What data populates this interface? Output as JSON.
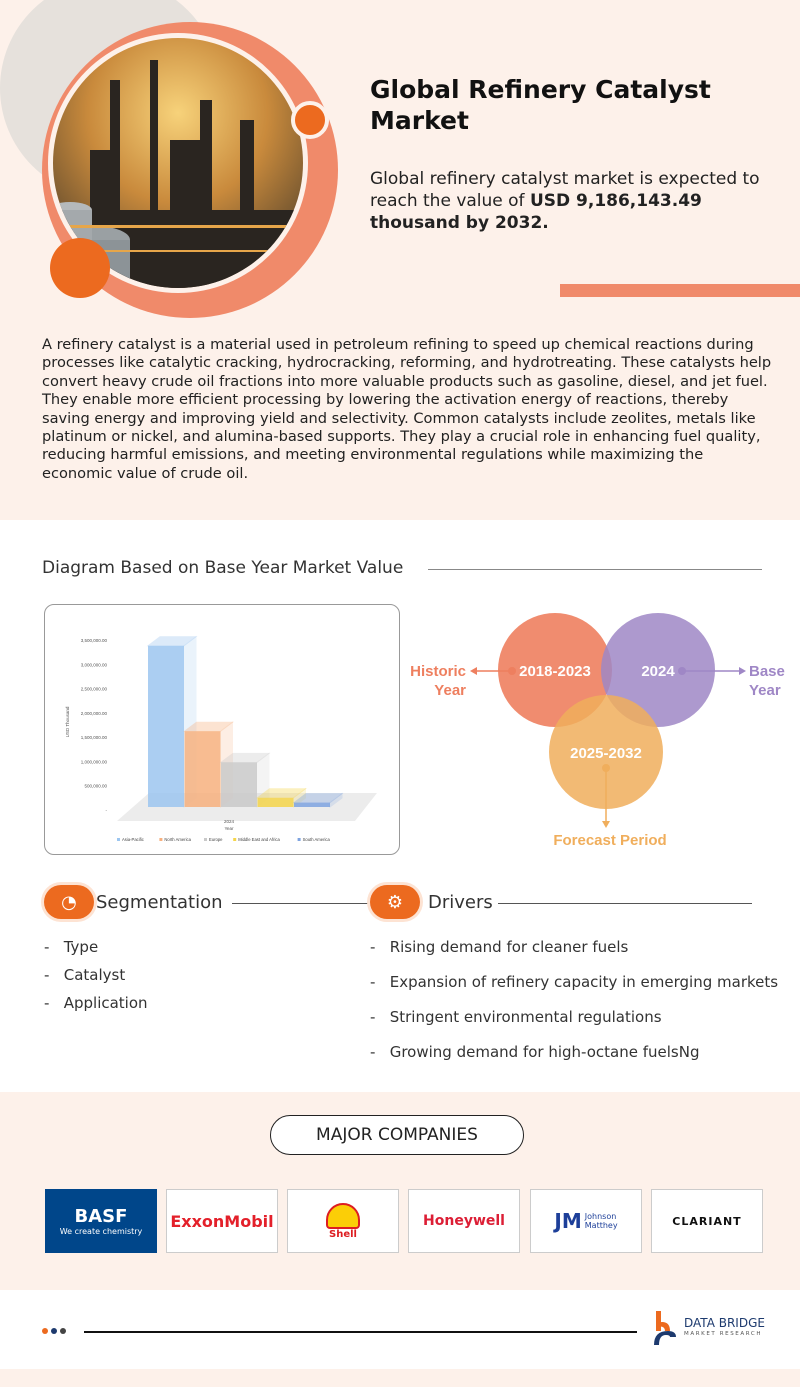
{
  "header": {
    "title": "Global Refinery Catalyst Market",
    "subtitle_pre": "Global refinery catalyst market is expected to reach the value of ",
    "subtitle_bold": "USD 9,186,143.49 thousand by 2032."
  },
  "description": "A refinery catalyst is a material used in petroleum refining to speed up chemical reactions during processes like catalytic cracking, hydrocracking, reforming, and hydrotreating. These catalysts help convert heavy crude oil fractions into more valuable products such as gasoline, diesel, and jet fuel. They enable more efficient processing by lowering the activation energy of reactions, thereby saving energy and improving yield and selectivity. Common catalysts include zeolites, metals like platinum or nickel, and alumina-based supports. They play a crucial role in enhancing fuel quality, reducing harmful emissions, and meeting environmental regulations while maximizing the economic value of crude oil.",
  "diagram_section": {
    "title": "Diagram Based on Base Year Market Value"
  },
  "chart_data": {
    "type": "bar",
    "title": "",
    "xlabel": "Year",
    "ylabel": "USD Thousand",
    "categories": [
      "2024"
    ],
    "series": [
      {
        "name": "Asia-Pacific",
        "values": [
          3320000
        ],
        "color": "#9cc6f0"
      },
      {
        "name": "North America",
        "values": [
          1560000
        ],
        "color": "#f7b07e"
      },
      {
        "name": "Europe",
        "values": [
          920000
        ],
        "color": "#c9c9c9"
      },
      {
        "name": "Middle East and Africa",
        "values": [
          190000
        ],
        "color": "#f5d54a"
      },
      {
        "name": "South America",
        "values": [
          90000
        ],
        "color": "#7ea3e0"
      }
    ],
    "ylim": [
      0,
      3500000
    ],
    "yticks": [
      "",
      "500,000.00",
      "1,000,000.00",
      "1,500,000.00",
      "2,000,000.00",
      "2,500,000.00",
      "3,000,000.00",
      "3,500,000.00"
    ],
    "legend_position": "bottom"
  },
  "venn": {
    "historic": {
      "years": "2018-2023",
      "label1": "Historic",
      "label2": "Year",
      "color": "#ee7f5f"
    },
    "base": {
      "years": "2024",
      "label1": "Base",
      "label2": "Year",
      "color": "#9f87c6"
    },
    "forecast": {
      "years": "2025-2032",
      "label": "Forecast Period",
      "color": "#f0ae5c"
    }
  },
  "segmentation": {
    "title": "Segmentation",
    "items": [
      "Type",
      "Catalyst",
      "Application"
    ]
  },
  "drivers": {
    "title": "Drivers",
    "items": [
      "Rising demand for cleaner fuels",
      "Expansion of refinery capacity in emerging markets",
      "Stringent environmental regulations",
      "Growing demand for high-octane fuelsNg"
    ]
  },
  "companies": {
    "title": "MAJOR COMPANIES",
    "logos": [
      {
        "name": "BASF",
        "tagline": "We create chemistry"
      },
      {
        "name": "ExxonMobil"
      },
      {
        "name": "Shell"
      },
      {
        "name": "Honeywell"
      },
      {
        "name": "JM",
        "tagline1": "Johnson",
        "tagline2": "Matthey"
      },
      {
        "name": "CLARIANT"
      }
    ]
  },
  "footer": {
    "brand1": "DATA BRIDGE",
    "brand2": "MARKET RESEARCH"
  },
  "colors": {
    "accent": "#ec6a1f",
    "peach": "#fdf1ea",
    "salmon": "#f08a6a"
  }
}
